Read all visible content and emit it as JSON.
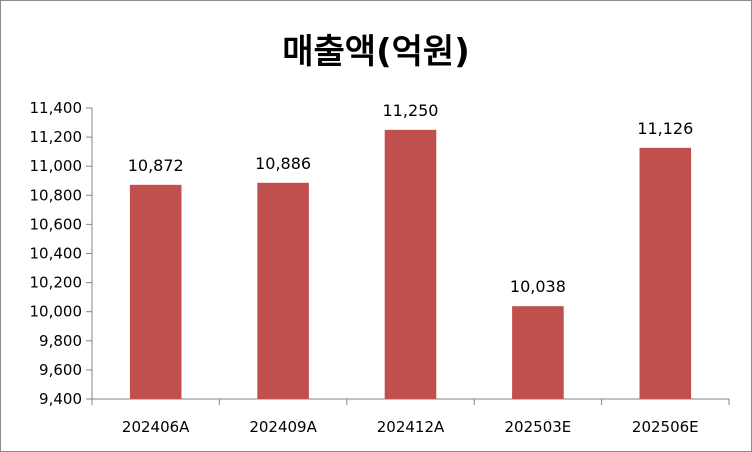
{
  "chart_data": {
    "type": "bar",
    "title": "매출액(억원)",
    "categories": [
      "202406A",
      "202409A",
      "202412A",
      "202503E",
      "202506E"
    ],
    "values": [
      10872,
      10886,
      11250,
      10038,
      11126
    ],
    "value_labels": [
      "10,872",
      "10,886",
      "11,250",
      "10,038",
      "11,126"
    ],
    "ylim": [
      9400,
      11400
    ],
    "yticks": [
      9400,
      9600,
      9800,
      10000,
      10200,
      10400,
      10600,
      10800,
      11000,
      11200,
      11400
    ],
    "ytick_labels": [
      "9,400",
      "9,600",
      "9,800",
      "10,000",
      "10,200",
      "10,400",
      "10,600",
      "10,800",
      "11,000",
      "11,200",
      "11,400"
    ],
    "xlabel": "",
    "ylabel": "",
    "grid": false,
    "legend": "none",
    "bar_color": "#c0504d"
  }
}
